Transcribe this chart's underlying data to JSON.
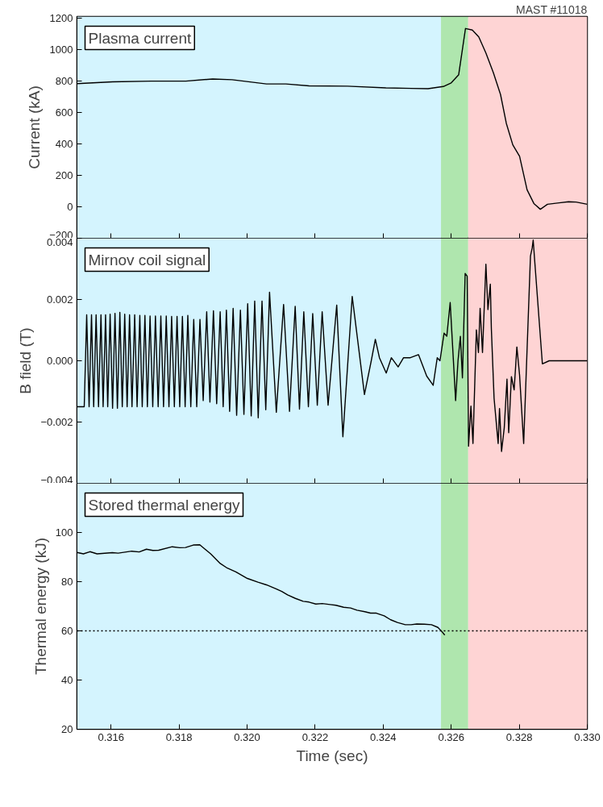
{
  "chart_data": [
    {
      "type": "line",
      "title": "Plasma current",
      "ylabel": "Current (kA)",
      "annotations": [
        "MAST #11018"
      ],
      "xlim": [
        0.315,
        0.33
      ],
      "xticks": [
        0.316,
        0.318,
        0.32,
        0.322,
        0.324,
        0.326,
        0.328,
        0.33
      ],
      "ylim": [
        -200,
        1210
      ],
      "yticks": [
        -200,
        0,
        200,
        400,
        600,
        800,
        1000,
        1200
      ],
      "tick_labels": "y",
      "bands": [
        {
          "axis": "x",
          "from": 0.315,
          "to": 0.3257,
          "color": "#d4f4fe"
        },
        {
          "axis": "x",
          "from": 0.3257,
          "to": 0.3265,
          "color": "#afe6ae"
        },
        {
          "axis": "x",
          "from": 0.3265,
          "to": 0.33,
          "color": "#fed4d4"
        }
      ],
      "series": [
        {
          "color": "#000000",
          "x": [
            0.315,
            0.31605,
            0.31718,
            0.3182,
            0.31899,
            0.31956,
            0.32057,
            0.32114,
            0.32182,
            0.32295,
            0.32408,
            0.32532,
            0.32577,
            0.326,
            0.32622,
            0.32642,
            0.32662,
            0.32681,
            0.32702,
            0.32724,
            0.32745,
            0.32762,
            0.32781,
            0.32801,
            0.32823,
            0.32843,
            0.32862,
            0.32883,
            0.32917,
            0.32945,
            0.32967,
            0.33
          ],
          "values": [
            783,
            795,
            799,
            799,
            813,
            808,
            781,
            781,
            769,
            767,
            756,
            751,
            765,
            788,
            840,
            1134,
            1124,
            1081,
            978,
            852,
            714,
            531,
            394,
            321,
            108,
            21,
            -16,
            16,
            25,
            32,
            30,
            16
          ]
        }
      ]
    },
    {
      "type": "line",
      "title": "Mirnov coil signal",
      "ylabel": "B field (T)",
      "xlim": [
        0.315,
        0.33
      ],
      "xticks": [
        0.316,
        0.318,
        0.32,
        0.322,
        0.324,
        0.326,
        0.328,
        0.33
      ],
      "ylim": [
        -0.004,
        0.004
      ],
      "yticks": [
        -0.004,
        -0.002,
        {
          "value": 0,
          "label": "0.000"
        },
        0.002,
        0.004
      ],
      "tick_labels": "y",
      "bands": [
        {
          "axis": "x",
          "from": 0.315,
          "to": 0.3257,
          "color": "#d4f4fe"
        },
        {
          "axis": "x",
          "from": 0.3257,
          "to": 0.3265,
          "color": "#afe6ae"
        },
        {
          "axis": "x",
          "from": 0.3265,
          "to": 0.33,
          "color": "#fed4d4"
        }
      ],
      "series": [
        {
          "color": "#000000",
          "x": [
            0.315,
            0.315213,
            0.315285,
            0.315356,
            0.315427,
            0.315491,
            0.315562,
            0.315633,
            0.315705,
            0.315768,
            0.31584,
            0.315903,
            0.315974,
            0.316046,
            0.316117,
            0.316188,
            0.31626,
            0.316331,
            0.316403,
            0.316474,
            0.316545,
            0.316617,
            0.316696,
            0.316767,
            0.316847,
            0.316918,
            0.316997,
            0.317069,
            0.317148,
            0.317227,
            0.317306,
            0.317386,
            0.317465,
            0.317544,
            0.317624,
            0.317703,
            0.317782,
            0.317862,
            0.317941,
            0.31802,
            0.318099,
            0.318179,
            0.318258,
            0.318345,
            0.318432,
            0.31852,
            0.318615,
            0.31871,
            0.318813,
            0.318908,
            0.319011,
            0.319106,
            0.319209,
            0.319297,
            0.319392,
            0.319487,
            0.31959,
            0.319693,
            0.319804,
            0.319907,
            0.320018,
            0.320121,
            0.320224,
            0.320327,
            0.320439,
            0.320549,
            0.32066,
            0.320859,
            0.321073,
            0.321247,
            0.321414,
            0.32154,
            0.321667,
            0.321802,
            0.321929,
            0.322064,
            0.322207,
            0.322381,
            0.322635,
            0.322816,
            0.32309,
            0.32345,
            0.32365,
            0.32377,
            0.32389,
            0.32409,
            0.32424,
            0.32444,
            0.3246,
            0.3248,
            0.32504,
            0.32528,
            0.32547,
            0.32559,
            0.32567,
            0.32579,
            0.32587,
            0.32597,
            0.32605,
            0.32613,
            0.3262,
            0.32627,
            0.32633,
            0.32641,
            0.32647,
            0.32651,
            0.32658,
            0.32664,
            0.32674,
            0.3268,
            0.32685,
            0.32692,
            0.32702,
            0.32708,
            0.32715,
            0.32718,
            0.32726,
            0.32738,
            0.32742,
            0.32748,
            0.32756,
            0.32764,
            0.32769,
            0.32777,
            0.32785,
            0.32793,
            0.32801,
            0.32813,
            0.32833,
            0.32838,
            0.32841,
            0.32845,
            0.32868,
            0.32888,
            0.32948,
            0.33
          ],
          "values": [
            -0.0015,
            -0.0015,
            0.0015,
            -0.0015,
            0.0015,
            -0.0015,
            0.0015,
            -0.0015,
            0.0015,
            -0.0015,
            0.0015,
            -0.0015,
            0.00152,
            -0.00155,
            0.00155,
            -0.00155,
            0.00158,
            -0.0015,
            0.00152,
            -0.0015,
            0.0015,
            -0.0015,
            0.0015,
            -0.0015,
            0.00148,
            -0.0015,
            0.00148,
            -0.0015,
            0.00146,
            -0.0015,
            0.00146,
            -0.0015,
            0.00146,
            -0.0015,
            0.00146,
            -0.0015,
            0.00145,
            -0.0015,
            0.00145,
            -0.0015,
            0.00145,
            -0.0015,
            0.00148,
            -0.0015,
            0.00135,
            -0.0015,
            0.00135,
            -0.0013,
            0.0016,
            -0.00135,
            0.00163,
            -0.0014,
            0.0016,
            -0.0015,
            0.00165,
            -0.00165,
            0.00171,
            -0.00178,
            0.00165,
            -0.00175,
            0.00186,
            -0.0018,
            0.00195,
            -0.00186,
            0.00195,
            -0.0016,
            0.00224,
            -0.00168,
            0.00184,
            -0.00165,
            0.00178,
            -0.00158,
            0.0016,
            -0.0015,
            0.00154,
            -0.00145,
            0.0016,
            -0.00145,
            0.00182,
            -0.00248,
            0.0021,
            -0.0011,
            0.0,
            0.0007,
            0.0001,
            -0.0004,
            0.0001,
            -0.0002,
            0.0001,
            0.0001,
            0.0002,
            -0.0005,
            -0.0008,
            0.0001,
            0.0,
            0.0009,
            0.0008,
            0.0019,
            0.0003,
            -0.0013,
            0.0,
            0.0008,
            -0.00056,
            0.00285,
            0.00276,
            -0.00279,
            -0.00148,
            -0.0027,
            0.00101,
            0.00027,
            0.00171,
            0.00027,
            0.00315,
            0.00167,
            0.0025,
            0.00106,
            -0.00122,
            -0.0027,
            -0.00156,
            -0.00296,
            -0.00218,
            -0.0006,
            -0.00235,
            -0.00052,
            -0.00095,
            0.00045,
            -0.00047,
            -0.0027,
            0.00342,
            0.00368,
            0.00394,
            0.00333,
            -0.0001,
            0.0,
            0.0,
            0.0
          ]
        }
      ]
    },
    {
      "type": "line",
      "title": "Stored thermal energy",
      "ylabel": "Thermal energy (kJ)",
      "xlabel": "Time (sec)",
      "xlim": [
        0.315,
        0.33
      ],
      "xticks": [
        0.316,
        0.318,
        {
          "value": 0.32,
          "label": "0.320"
        },
        0.322,
        0.324,
        0.326,
        0.328,
        {
          "value": 0.33,
          "label": "0.330"
        }
      ],
      "ylim": [
        20,
        120
      ],
      "yticks": [
        20,
        40,
        60,
        80,
        100
      ],
      "bands": [
        {
          "axis": "x",
          "from": 0.315,
          "to": 0.3257,
          "color": "#d4f4fe"
        },
        {
          "axis": "x",
          "from": 0.3257,
          "to": 0.3265,
          "color": "#afe6ae"
        },
        {
          "axis": "x",
          "from": 0.3265,
          "to": 0.33,
          "color": "#fed4d4"
        }
      ],
      "ref_lines": [
        {
          "axis": "y",
          "value": 60,
          "color": "#000000",
          "line_style": "dotted"
        }
      ],
      "series": [
        {
          "color": "#000000",
          "x": [
            0.315,
            0.31519,
            0.31538,
            0.31559,
            0.31604,
            0.31621,
            0.31661,
            0.31683,
            0.31704,
            0.31723,
            0.3174,
            0.3178,
            0.31802,
            0.31819,
            0.31842,
            0.31861,
            0.31893,
            0.31921,
            0.31942,
            0.31967,
            0.32001,
            0.32032,
            0.32057,
            0.32085,
            0.32102,
            0.32119,
            0.32142,
            0.32165,
            0.32182,
            0.32202,
            0.32221,
            0.32244,
            0.32261,
            0.32284,
            0.32304,
            0.32323,
            0.32346,
            0.32363,
            0.3238,
            0.32403,
            0.32422,
            0.32442,
            0.32465,
            0.32482,
            0.32499,
            0.32521,
            0.32542,
            0.32561,
            0.32572,
            0.32581
          ],
          "values": [
            91.9,
            91.3,
            92.2,
            91.3,
            91.8,
            91.6,
            92.4,
            92.1,
            93.2,
            92.7,
            92.8,
            94.2,
            93.8,
            93.9,
            94.9,
            95.0,
            91.3,
            87.4,
            85.5,
            84.0,
            81.3,
            79.8,
            78.7,
            77.1,
            76.0,
            74.6,
            73.2,
            72.0,
            71.7,
            70.9,
            71.1,
            70.7,
            70.4,
            69.6,
            69.3,
            68.4,
            67.8,
            67.2,
            67.2,
            66.1,
            64.5,
            63.4,
            62.5,
            62.5,
            62.8,
            62.7,
            62.5,
            61.4,
            59.8,
            58.3
          ]
        }
      ]
    }
  ]
}
